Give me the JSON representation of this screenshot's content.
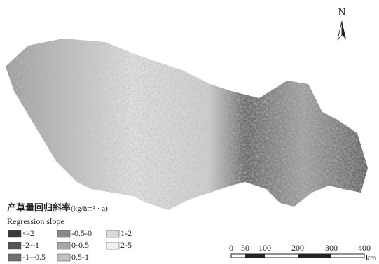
{
  "north_arrow": {
    "label": "N"
  },
  "legend": {
    "title": "产草量回归斜率",
    "unit": "(kg/hm² · a)",
    "subtitle": "Regression slope",
    "items": [
      {
        "label": "<-2",
        "color": "#3a3a3a"
      },
      {
        "label": "-2--1",
        "color": "#555555"
      },
      {
        "label": "-1--0.5",
        "color": "#707070"
      },
      {
        "label": "-0.5-0",
        "color": "#8a8a8a"
      },
      {
        "label": "0-0.5",
        "color": "#a8a8a8"
      },
      {
        "label": "0.5-1",
        "color": "#c4c4c4"
      },
      {
        "label": "1-2",
        "color": "#dadada"
      },
      {
        "label": "2-5",
        "color": "#efefef"
      }
    ]
  },
  "scale_bar": {
    "labels": [
      "0",
      "50",
      "100",
      "200",
      "300",
      "400"
    ],
    "unit": "km"
  }
}
